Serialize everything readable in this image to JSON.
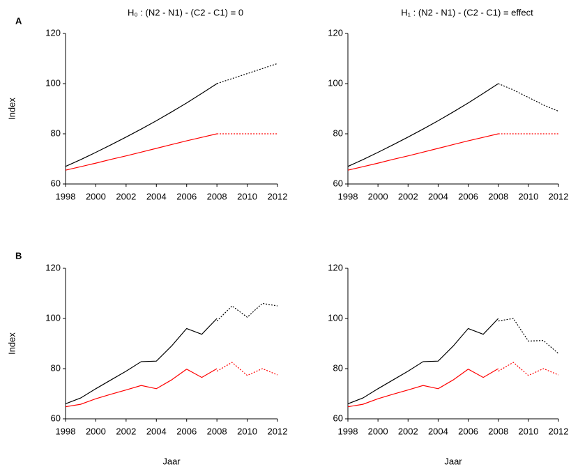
{
  "chart_data": [
    {
      "type": "line",
      "panel_label": "A",
      "title": "H₀ : (N2 - N1) - (C2 - C1) = 0",
      "ylabel": "Index",
      "x": [
        1998,
        1999,
        2000,
        2001,
        2002,
        2003,
        2004,
        2005,
        2006,
        2007,
        2008,
        2009,
        2010,
        2011,
        2012
      ],
      "xlim": [
        1998,
        2012
      ],
      "xticks": [
        1998,
        2000,
        2002,
        2004,
        2006,
        2008,
        2010,
        2012
      ],
      "ylim": [
        60,
        120
      ],
      "yticks": [
        60,
        80,
        100,
        120
      ],
      "series": [
        {
          "color": "#000000",
          "style": "solid",
          "values": [
            67,
            69.7,
            72.6,
            75.6,
            78.7,
            81.9,
            85.2,
            88.7,
            92.3,
            96.1,
            100,
            null,
            null,
            null,
            null
          ]
        },
        {
          "color": "#000000",
          "style": "dotted",
          "values": [
            null,
            null,
            null,
            null,
            null,
            null,
            null,
            null,
            null,
            null,
            100,
            102,
            104,
            106,
            108
          ]
        },
        {
          "color": "#ff0000",
          "style": "solid",
          "values": [
            65.5,
            66.9,
            68.3,
            69.8,
            71.2,
            72.7,
            74.2,
            75.7,
            77.2,
            78.6,
            80,
            null,
            null,
            null,
            null
          ]
        },
        {
          "color": "#ff0000",
          "style": "dotted",
          "values": [
            null,
            null,
            null,
            null,
            null,
            null,
            null,
            null,
            null,
            null,
            80,
            80,
            80,
            80,
            80
          ]
        }
      ]
    },
    {
      "type": "line",
      "title": "H₁ : (N2 - N1) - (C2 - C1) = effect",
      "x": [
        1998,
        1999,
        2000,
        2001,
        2002,
        2003,
        2004,
        2005,
        2006,
        2007,
        2008,
        2009,
        2010,
        2011,
        2012
      ],
      "xlim": [
        1998,
        2012
      ],
      "xticks": [
        1998,
        2000,
        2002,
        2004,
        2006,
        2008,
        2010,
        2012
      ],
      "ylim": [
        60,
        120
      ],
      "yticks": [
        60,
        80,
        100,
        120
      ],
      "series": [
        {
          "color": "#000000",
          "style": "solid",
          "values": [
            67,
            69.7,
            72.6,
            75.6,
            78.7,
            81.9,
            85.2,
            88.7,
            92.3,
            96.1,
            100,
            null,
            null,
            null,
            null
          ]
        },
        {
          "color": "#000000",
          "style": "dotted",
          "values": [
            null,
            null,
            null,
            null,
            null,
            null,
            null,
            null,
            null,
            null,
            100,
            97.5,
            94.5,
            91.5,
            89
          ]
        },
        {
          "color": "#ff0000",
          "style": "solid",
          "values": [
            65.5,
            66.9,
            68.3,
            69.8,
            71.2,
            72.7,
            74.2,
            75.7,
            77.2,
            78.6,
            80,
            null,
            null,
            null,
            null
          ]
        },
        {
          "color": "#ff0000",
          "style": "dotted",
          "values": [
            null,
            null,
            null,
            null,
            null,
            null,
            null,
            null,
            null,
            null,
            80,
            80,
            80,
            80,
            80
          ]
        }
      ]
    },
    {
      "type": "line",
      "panel_label": "B",
      "ylabel": "Index",
      "xlabel": "Jaar",
      "x": [
        1998,
        1999,
        2000,
        2001,
        2002,
        2003,
        2004,
        2005,
        2006,
        2007,
        2008,
        2009,
        2010,
        2011,
        2012
      ],
      "xlim": [
        1998,
        2012
      ],
      "xticks": [
        1998,
        2000,
        2002,
        2004,
        2006,
        2008,
        2010,
        2012
      ],
      "ylim": [
        60,
        120
      ],
      "yticks": [
        60,
        80,
        100,
        120
      ],
      "series": [
        {
          "color": "#000000",
          "style": "solid",
          "values": [
            66,
            68.3,
            72,
            75.5,
            79,
            82.8,
            83,
            89,
            96,
            93.7,
            100,
            null,
            null,
            null,
            null
          ]
        },
        {
          "color": "#000000",
          "style": "dotted",
          "values": [
            null,
            null,
            null,
            null,
            null,
            null,
            null,
            null,
            null,
            null,
            99,
            105,
            100.5,
            106,
            105
          ]
        },
        {
          "color": "#ff0000",
          "style": "solid",
          "values": [
            64.8,
            65.8,
            68,
            69.8,
            71.5,
            73.3,
            72,
            75.5,
            79.8,
            76.5,
            80,
            null,
            null,
            null,
            null
          ]
        },
        {
          "color": "#ff0000",
          "style": "dotted",
          "values": [
            null,
            null,
            null,
            null,
            null,
            null,
            null,
            null,
            null,
            null,
            79,
            82.5,
            77.3,
            80,
            77.5
          ]
        }
      ]
    },
    {
      "type": "line",
      "xlabel": "Jaar",
      "x": [
        1998,
        1999,
        2000,
        2001,
        2002,
        2003,
        2004,
        2005,
        2006,
        2007,
        2008,
        2009,
        2010,
        2011,
        2012
      ],
      "xlim": [
        1998,
        2012
      ],
      "xticks": [
        1998,
        2000,
        2002,
        2004,
        2006,
        2008,
        2010,
        2012
      ],
      "ylim": [
        60,
        120
      ],
      "yticks": [
        60,
        80,
        100,
        120
      ],
      "series": [
        {
          "color": "#000000",
          "style": "solid",
          "values": [
            66,
            68.3,
            72,
            75.5,
            79,
            82.8,
            83,
            89,
            96,
            93.7,
            100,
            null,
            null,
            null,
            null
          ]
        },
        {
          "color": "#000000",
          "style": "dotted",
          "values": [
            null,
            null,
            null,
            null,
            null,
            null,
            null,
            null,
            null,
            null,
            99,
            100,
            91,
            91.2,
            86
          ]
        },
        {
          "color": "#ff0000",
          "style": "solid",
          "values": [
            64.8,
            65.8,
            68,
            69.8,
            71.5,
            73.3,
            72,
            75.5,
            79.8,
            76.5,
            80,
            null,
            null,
            null,
            null
          ]
        },
        {
          "color": "#ff0000",
          "style": "dotted",
          "values": [
            null,
            null,
            null,
            null,
            null,
            null,
            null,
            null,
            null,
            null,
            79,
            82.5,
            77.3,
            80,
            77.5
          ]
        }
      ]
    }
  ]
}
